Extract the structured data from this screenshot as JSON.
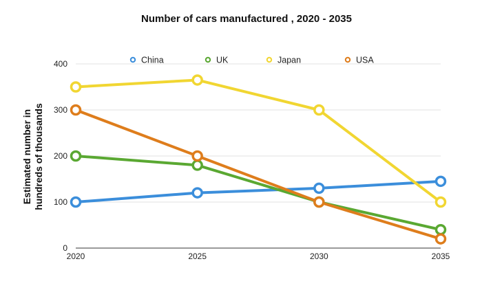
{
  "chart_data": {
    "type": "line",
    "title": "Number of cars manufactured , 2020 - 2035",
    "ylabel_lines": [
      "Estimated number in",
      "hundreds of thousands"
    ],
    "xlabel": "",
    "x": [
      "2020",
      "2025",
      "2030",
      "2035"
    ],
    "yticks": [
      "0",
      "100",
      "200",
      "300",
      "400"
    ],
    "ylim": [
      0,
      400
    ],
    "grid": true,
    "legend_position": "top",
    "series": [
      {
        "name": "China",
        "color": "#3b8edb",
        "values": [
          100,
          120,
          130,
          145
        ]
      },
      {
        "name": "UK",
        "color": "#5aa832",
        "values": [
          200,
          180,
          100,
          40
        ]
      },
      {
        "name": "Japan",
        "color": "#f1d632",
        "values": [
          350,
          365,
          300,
          100
        ]
      },
      {
        "name": "USA",
        "color": "#de7d1c",
        "values": [
          300,
          200,
          100,
          20
        ]
      }
    ]
  }
}
